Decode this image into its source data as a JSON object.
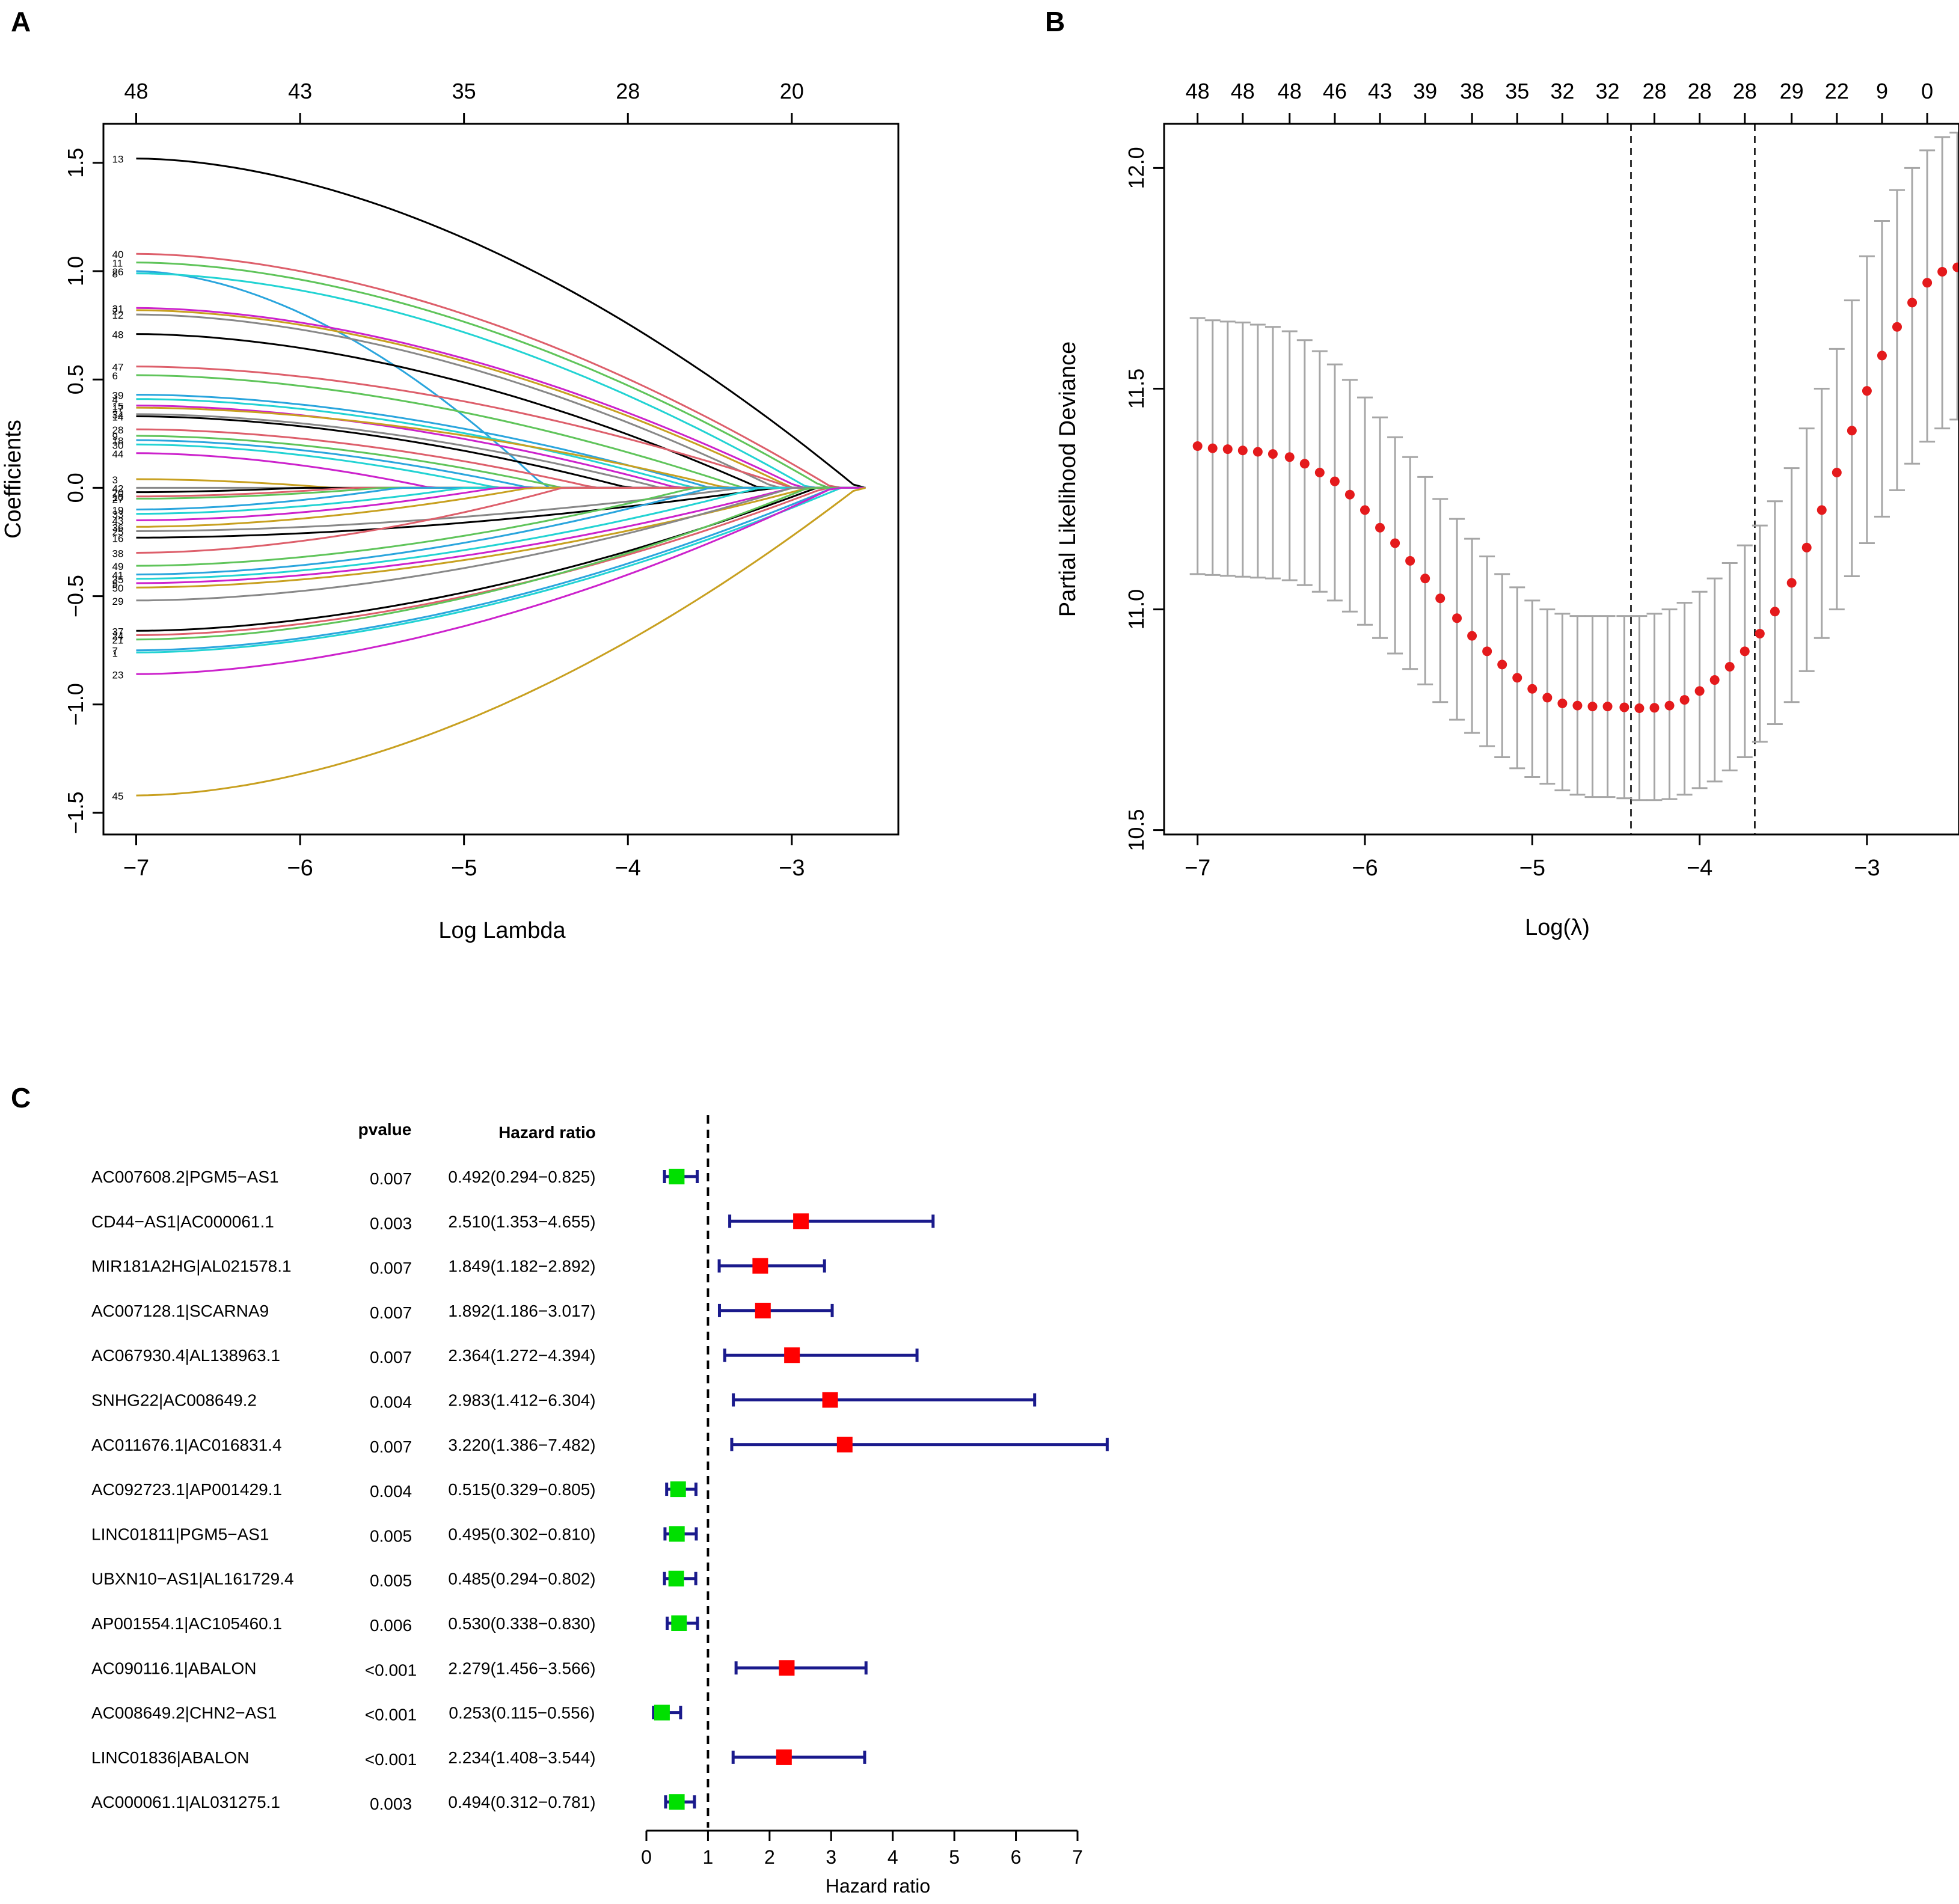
{
  "panel_labels": {
    "a": "A",
    "b": "B",
    "c": "C"
  },
  "colors": {
    "axis": "#000000",
    "cv_point": "#e41a1c",
    "cv_errorbar": "#a6a6a6",
    "ci_line": "#1a1a8c",
    "hr_risk": "#ff0000",
    "hr_protective": "#00e000",
    "lasso_palette": [
      "#000000",
      "#dd5f6b",
      "#5fc45a",
      "#2aa5dd",
      "#22d3d3",
      "#cc22cc",
      "#c8a020",
      "#888888"
    ]
  },
  "chart_data": [
    {
      "id": "A",
      "type": "line",
      "title": "",
      "xlabel": "Log Lambda",
      "ylabel": "Coefficients",
      "xlim": [
        -7.2,
        -2.35
      ],
      "ylim": [
        -1.6,
        1.68
      ],
      "x_ticks": [
        -7,
        -6,
        -5,
        -4,
        -3
      ],
      "x_tick_labels": [
        "−7",
        "−6",
        "−5",
        "−4",
        "−3"
      ],
      "y_ticks": [
        -1.5,
        -1.0,
        -0.5,
        0.0,
        0.5,
        1.0,
        1.5
      ],
      "y_tick_labels": [
        "−1.5",
        "−1.0",
        "−0.5",
        "0.0",
        "0.5",
        "1.0",
        "1.5"
      ],
      "top_ticks": [
        -7,
        -6,
        -5,
        -4,
        -3
      ],
      "top_tick_labels": [
        "48",
        "43",
        "35",
        "28",
        "20"
      ],
      "x_start": -7,
      "x_end": -2.55,
      "series": [
        {
          "label": "13",
          "start": 1.52,
          "zero_at": -2.6
        },
        {
          "label": "40",
          "start": 1.08,
          "zero_at": -2.75
        },
        {
          "label": "11",
          "start": 1.04,
          "zero_at": -2.8
        },
        {
          "label": "26",
          "start": 1.0,
          "zero_at": -4.5
        },
        {
          "label": "8",
          "start": 0.99,
          "zero_at": -2.9
        },
        {
          "label": "31",
          "start": 0.83,
          "zero_at": -2.95
        },
        {
          "label": "2",
          "start": 0.82,
          "zero_at": -3.0
        },
        {
          "label": "12",
          "start": 0.8,
          "zero_at": -3.1
        },
        {
          "label": "48",
          "start": 0.71,
          "zero_at": -3.2
        },
        {
          "label": "47",
          "start": 0.56,
          "zero_at": -3.0
        },
        {
          "label": "6",
          "start": 0.52,
          "zero_at": -3.3
        },
        {
          "label": "39",
          "start": 0.43,
          "zero_at": -3.5
        },
        {
          "label": "4",
          "start": 0.41,
          "zero_at": -3.6
        },
        {
          "label": "15",
          "start": 0.38,
          "zero_at": -3.7
        },
        {
          "label": "17",
          "start": 0.37,
          "zero_at": -3.4
        },
        {
          "label": "34",
          "start": 0.34,
          "zero_at": -3.8
        },
        {
          "label": "14",
          "start": 0.33,
          "zero_at": -4.0
        },
        {
          "label": "28",
          "start": 0.27,
          "zero_at": -4.2
        },
        {
          "label": "9",
          "start": 0.24,
          "zero_at": -4.4
        },
        {
          "label": "18",
          "start": 0.22,
          "zero_at": -4.6
        },
        {
          "label": "30",
          "start": 0.2,
          "zero_at": -4.8
        },
        {
          "label": "44",
          "start": 0.16,
          "zero_at": -5.2
        },
        {
          "label": "3",
          "start": 0.04,
          "zero_at": -5.8
        },
        {
          "label": "42",
          "start": 0.0,
          "zero_at": -7.0
        },
        {
          "label": "20",
          "start": -0.02,
          "zero_at": -6.0
        },
        {
          "label": "10",
          "start": -0.04,
          "zero_at": -5.7
        },
        {
          "label": "27",
          "start": -0.05,
          "zero_at": -5.5
        },
        {
          "label": "19",
          "start": -0.1,
          "zero_at": -5.4
        },
        {
          "label": "33",
          "start": -0.12,
          "zero_at": -5.0
        },
        {
          "label": "43",
          "start": -0.15,
          "zero_at": -4.8
        },
        {
          "label": "36",
          "start": -0.18,
          "zero_at": -4.6
        },
        {
          "label": "25",
          "start": -0.2,
          "zero_at": -3.3
        },
        {
          "label": "16",
          "start": -0.23,
          "zero_at": -3.1
        },
        {
          "label": "38",
          "start": -0.3,
          "zero_at": -4.4
        },
        {
          "label": "49",
          "start": -0.36,
          "zero_at": -3.6
        },
        {
          "label": "41",
          "start": -0.4,
          "zero_at": -3.5
        },
        {
          "label": "35",
          "start": -0.42,
          "zero_at": -3.2
        },
        {
          "label": "5",
          "start": -0.44,
          "zero_at": -3.0
        },
        {
          "label": "50",
          "start": -0.46,
          "zero_at": -2.9
        },
        {
          "label": "29",
          "start": -0.52,
          "zero_at": -3.0
        },
        {
          "label": "37",
          "start": -0.66,
          "zero_at": -2.85
        },
        {
          "label": "24",
          "start": -0.68,
          "zero_at": -2.8
        },
        {
          "label": "21",
          "start": -0.7,
          "zero_at": -2.9
        },
        {
          "label": "7",
          "start": -0.75,
          "zero_at": -2.75
        },
        {
          "label": "1",
          "start": -0.76,
          "zero_at": -2.7
        },
        {
          "label": "23",
          "start": -0.86,
          "zero_at": -2.75
        },
        {
          "label": "45",
          "start": -1.42,
          "zero_at": -2.6
        }
      ]
    },
    {
      "id": "B",
      "type": "scatter",
      "title": "",
      "xlabel": "Log(λ)",
      "ylabel": "Partial Likelihood Deviance",
      "xlim": [
        -7.2,
        -2.45
      ],
      "ylim": [
        10.49,
        12.1
      ],
      "x_ticks": [
        -7,
        -6,
        -5,
        -4,
        -3
      ],
      "x_tick_labels": [
        "−7",
        "−6",
        "−5",
        "−4",
        "−3"
      ],
      "y_ticks": [
        10.5,
        11.0,
        11.5,
        12.0
      ],
      "y_tick_labels": [
        "10.5",
        "11.0",
        "11.5",
        "12.0"
      ],
      "top_ticks": [
        -7.0,
        -6.73,
        -6.45,
        -6.18,
        -5.91,
        -5.64,
        -5.36,
        -5.09,
        -4.82,
        -4.55,
        -4.27,
        -4.0,
        -3.73,
        -3.45,
        -3.18,
        -2.91,
        -2.64
      ],
      "top_tick_labels": [
        "48",
        "48",
        "48",
        "46",
        "43",
        "39",
        "38",
        "35",
        "32",
        "32",
        "28",
        "28",
        "28",
        "29",
        "22",
        "9",
        "0"
      ],
      "vlines": [
        -4.41,
        -3.67
      ],
      "points": [
        {
          "x": -7.0,
          "y": 11.37,
          "lo": 11.08,
          "hi": 11.66
        },
        {
          "x": -6.91,
          "y": 11.365,
          "lo": 11.078,
          "hi": 11.655
        },
        {
          "x": -6.82,
          "y": 11.363,
          "lo": 11.076,
          "hi": 11.652
        },
        {
          "x": -6.73,
          "y": 11.36,
          "lo": 11.074,
          "hi": 11.65
        },
        {
          "x": -6.64,
          "y": 11.357,
          "lo": 11.072,
          "hi": 11.645
        },
        {
          "x": -6.55,
          "y": 11.352,
          "lo": 11.07,
          "hi": 11.64
        },
        {
          "x": -6.45,
          "y": 11.345,
          "lo": 11.066,
          "hi": 11.63
        },
        {
          "x": -6.36,
          "y": 11.33,
          "lo": 11.055,
          "hi": 11.61
        },
        {
          "x": -6.27,
          "y": 11.31,
          "lo": 11.04,
          "hi": 11.585
        },
        {
          "x": -6.18,
          "y": 11.29,
          "lo": 11.02,
          "hi": 11.555
        },
        {
          "x": -6.09,
          "y": 11.26,
          "lo": 10.995,
          "hi": 11.52
        },
        {
          "x": -6.0,
          "y": 11.225,
          "lo": 10.965,
          "hi": 11.48
        },
        {
          "x": -5.91,
          "y": 11.185,
          "lo": 10.935,
          "hi": 11.435
        },
        {
          "x": -5.82,
          "y": 11.15,
          "lo": 10.9,
          "hi": 11.39
        },
        {
          "x": -5.73,
          "y": 11.11,
          "lo": 10.865,
          "hi": 11.345
        },
        {
          "x": -5.64,
          "y": 11.07,
          "lo": 10.83,
          "hi": 11.3
        },
        {
          "x": -5.55,
          "y": 11.025,
          "lo": 10.79,
          "hi": 11.25
        },
        {
          "x": -5.45,
          "y": 10.98,
          "lo": 10.75,
          "hi": 11.205
        },
        {
          "x": -5.36,
          "y": 10.94,
          "lo": 10.72,
          "hi": 11.16
        },
        {
          "x": -5.27,
          "y": 10.905,
          "lo": 10.69,
          "hi": 11.12
        },
        {
          "x": -5.18,
          "y": 10.875,
          "lo": 10.665,
          "hi": 11.08
        },
        {
          "x": -5.09,
          "y": 10.845,
          "lo": 10.64,
          "hi": 11.05
        },
        {
          "x": -5.0,
          "y": 10.82,
          "lo": 10.62,
          "hi": 11.02
        },
        {
          "x": -4.91,
          "y": 10.8,
          "lo": 10.605,
          "hi": 11.0
        },
        {
          "x": -4.82,
          "y": 10.787,
          "lo": 10.59,
          "hi": 10.99
        },
        {
          "x": -4.73,
          "y": 10.782,
          "lo": 10.58,
          "hi": 10.985
        },
        {
          "x": -4.64,
          "y": 10.78,
          "lo": 10.575,
          "hi": 10.985
        },
        {
          "x": -4.55,
          "y": 10.78,
          "lo": 10.575,
          "hi": 10.985
        },
        {
          "x": -4.45,
          "y": 10.778,
          "lo": 10.572,
          "hi": 10.985
        },
        {
          "x": -4.36,
          "y": 10.776,
          "lo": 10.568,
          "hi": 10.985
        },
        {
          "x": -4.27,
          "y": 10.777,
          "lo": 10.568,
          "hi": 10.99
        },
        {
          "x": -4.18,
          "y": 10.782,
          "lo": 10.57,
          "hi": 11.0
        },
        {
          "x": -4.09,
          "y": 10.795,
          "lo": 10.58,
          "hi": 11.015
        },
        {
          "x": -4.0,
          "y": 10.815,
          "lo": 10.595,
          "hi": 11.04
        },
        {
          "x": -3.91,
          "y": 10.84,
          "lo": 10.61,
          "hi": 11.07
        },
        {
          "x": -3.82,
          "y": 10.87,
          "lo": 10.635,
          "hi": 11.105
        },
        {
          "x": -3.73,
          "y": 10.905,
          "lo": 10.665,
          "hi": 11.145
        },
        {
          "x": -3.64,
          "y": 10.945,
          "lo": 10.7,
          "hi": 11.19
        },
        {
          "x": -3.55,
          "y": 10.995,
          "lo": 10.74,
          "hi": 11.245
        },
        {
          "x": -3.45,
          "y": 11.06,
          "lo": 10.79,
          "hi": 11.32
        },
        {
          "x": -3.36,
          "y": 11.14,
          "lo": 10.86,
          "hi": 11.41
        },
        {
          "x": -3.27,
          "y": 11.225,
          "lo": 10.935,
          "hi": 11.5
        },
        {
          "x": -3.18,
          "y": 11.31,
          "lo": 11.0,
          "hi": 11.59
        },
        {
          "x": -3.09,
          "y": 11.405,
          "lo": 11.075,
          "hi": 11.7
        },
        {
          "x": -3.0,
          "y": 11.495,
          "lo": 11.15,
          "hi": 11.8
        },
        {
          "x": -2.91,
          "y": 11.575,
          "lo": 11.21,
          "hi": 11.88
        },
        {
          "x": -2.82,
          "y": 11.64,
          "lo": 11.27,
          "hi": 11.95
        },
        {
          "x": -2.73,
          "y": 11.695,
          "lo": 11.33,
          "hi": 12.0
        },
        {
          "x": -2.64,
          "y": 11.74,
          "lo": 11.38,
          "hi": 12.04
        },
        {
          "x": -2.55,
          "y": 11.765,
          "lo": 11.41,
          "hi": 12.07
        },
        {
          "x": -2.46,
          "y": 11.775,
          "lo": 11.43,
          "hi": 12.08
        }
      ]
    },
    {
      "id": "C",
      "type": "forest",
      "title": "",
      "xlabel": "Hazard ratio",
      "col_pvalue": "pvalue",
      "col_hr": "Hazard ratio",
      "xlim": [
        0,
        7
      ],
      "x_ticks": [
        0,
        1,
        2,
        3,
        4,
        5,
        6,
        7
      ],
      "x_tick_labels": [
        "0",
        "1",
        "2",
        "3",
        "4",
        "5",
        "6",
        "7"
      ],
      "reference": 1,
      "rows": [
        {
          "gene": "AC007608.2|PGM5−AS1",
          "pvalue": "0.007",
          "hr_text": "0.492(0.294−0.825)",
          "hr": 0.492,
          "lo": 0.294,
          "hi": 0.825
        },
        {
          "gene": "CD44−AS1|AC000061.1",
          "pvalue": "0.003",
          "hr_text": "2.510(1.353−4.655)",
          "hr": 2.51,
          "lo": 1.353,
          "hi": 4.655
        },
        {
          "gene": "MIR181A2HG|AL021578.1",
          "pvalue": "0.007",
          "hr_text": "1.849(1.182−2.892)",
          "hr": 1.849,
          "lo": 1.182,
          "hi": 2.892
        },
        {
          "gene": "AC007128.1|SCARNA9",
          "pvalue": "0.007",
          "hr_text": "1.892(1.186−3.017)",
          "hr": 1.892,
          "lo": 1.186,
          "hi": 3.017
        },
        {
          "gene": "AC067930.4|AL138963.1",
          "pvalue": "0.007",
          "hr_text": "2.364(1.272−4.394)",
          "hr": 2.364,
          "lo": 1.272,
          "hi": 4.394
        },
        {
          "gene": "SNHG22|AC008649.2",
          "pvalue": "0.004",
          "hr_text": "2.983(1.412−6.304)",
          "hr": 2.983,
          "lo": 1.412,
          "hi": 6.304
        },
        {
          "gene": "AC011676.1|AC016831.4",
          "pvalue": "0.007",
          "hr_text": "3.220(1.386−7.482)",
          "hr": 3.22,
          "lo": 1.386,
          "hi": 7.482
        },
        {
          "gene": "AC092723.1|AP001429.1",
          "pvalue": "0.004",
          "hr_text": "0.515(0.329−0.805)",
          "hr": 0.515,
          "lo": 0.329,
          "hi": 0.805
        },
        {
          "gene": "LINC01811|PGM5−AS1",
          "pvalue": "0.005",
          "hr_text": "0.495(0.302−0.810)",
          "hr": 0.495,
          "lo": 0.302,
          "hi": 0.81
        },
        {
          "gene": "UBXN10−AS1|AL161729.4",
          "pvalue": "0.005",
          "hr_text": "0.485(0.294−0.802)",
          "hr": 0.485,
          "lo": 0.294,
          "hi": 0.802
        },
        {
          "gene": "AP001554.1|AC105460.1",
          "pvalue": "0.006",
          "hr_text": "0.530(0.338−0.830)",
          "hr": 0.53,
          "lo": 0.338,
          "hi": 0.83
        },
        {
          "gene": "AC090116.1|ABALON",
          "pvalue": "<0.001",
          "hr_text": "2.279(1.456−3.566)",
          "hr": 2.279,
          "lo": 1.456,
          "hi": 3.566
        },
        {
          "gene": "AC008649.2|CHN2−AS1",
          "pvalue": "<0.001",
          "hr_text": "0.253(0.115−0.556)",
          "hr": 0.253,
          "lo": 0.115,
          "hi": 0.556
        },
        {
          "gene": "LINC01836|ABALON",
          "pvalue": "<0.001",
          "hr_text": "2.234(1.408−3.544)",
          "hr": 2.234,
          "lo": 1.408,
          "hi": 3.544
        },
        {
          "gene": "AC000061.1|AL031275.1",
          "pvalue": "0.003",
          "hr_text": "0.494(0.312−0.781)",
          "hr": 0.494,
          "lo": 0.312,
          "hi": 0.781
        }
      ]
    }
  ]
}
